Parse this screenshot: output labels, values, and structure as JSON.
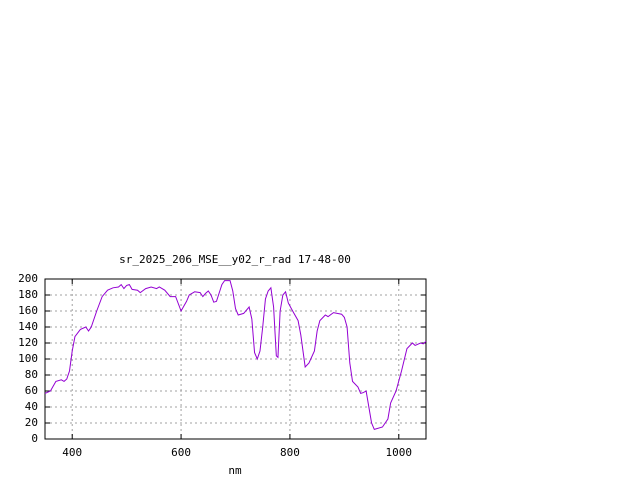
{
  "chart_data": {
    "type": "line",
    "title": "sr_2025_206_MSE__y02_r_rad 17-48-00",
    "xlabel": "nm",
    "color": "#9400d3",
    "grid": true,
    "xlim": [
      350,
      1050
    ],
    "xticks": [
      400,
      600,
      800,
      1000
    ],
    "ylim": [
      0,
      200
    ],
    "yticks": [
      0,
      20,
      40,
      60,
      80,
      100,
      120,
      140,
      160,
      180,
      200
    ],
    "x": [
      350,
      360,
      370,
      380,
      385,
      390,
      395,
      400,
      405,
      415,
      425,
      430,
      435,
      445,
      455,
      465,
      475,
      485,
      490,
      495,
      500,
      505,
      510,
      520,
      525,
      535,
      545,
      555,
      560,
      570,
      580,
      590,
      600,
      610,
      615,
      625,
      635,
      640,
      645,
      650,
      655,
      660,
      665,
      675,
      680,
      690,
      695,
      700,
      705,
      715,
      725,
      730,
      735,
      740,
      745,
      750,
      755,
      760,
      765,
      770,
      775,
      778,
      782,
      787,
      792,
      797,
      805,
      815,
      820,
      828,
      835,
      845,
      850,
      855,
      865,
      870,
      880,
      895,
      900,
      905,
      910,
      915,
      925,
      930,
      935,
      940,
      945,
      950,
      955,
      970,
      975,
      980,
      985,
      995,
      1005,
      1015,
      1025,
      1030,
      1040,
      1045,
      1050
    ],
    "values": [
      57,
      60,
      72,
      74,
      72,
      75,
      85,
      110,
      128,
      137,
      140,
      135,
      140,
      160,
      178,
      186,
      189,
      190,
      193,
      188,
      192,
      193,
      187,
      186,
      183,
      188,
      190,
      188,
      190,
      186,
      178,
      178,
      160,
      172,
      180,
      184,
      183,
      178,
      182,
      185,
      180,
      171,
      172,
      193,
      198,
      198,
      185,
      163,
      155,
      157,
      165,
      150,
      108,
      100,
      110,
      140,
      175,
      185,
      189,
      165,
      104,
      102,
      160,
      180,
      184,
      170,
      160,
      148,
      130,
      90,
      95,
      110,
      135,
      148,
      155,
      153,
      158,
      156,
      152,
      140,
      95,
      72,
      65,
      57,
      58,
      60,
      40,
      20,
      12,
      15,
      20,
      25,
      45,
      60,
      85,
      113,
      120,
      117,
      120,
      119,
      122
    ]
  }
}
